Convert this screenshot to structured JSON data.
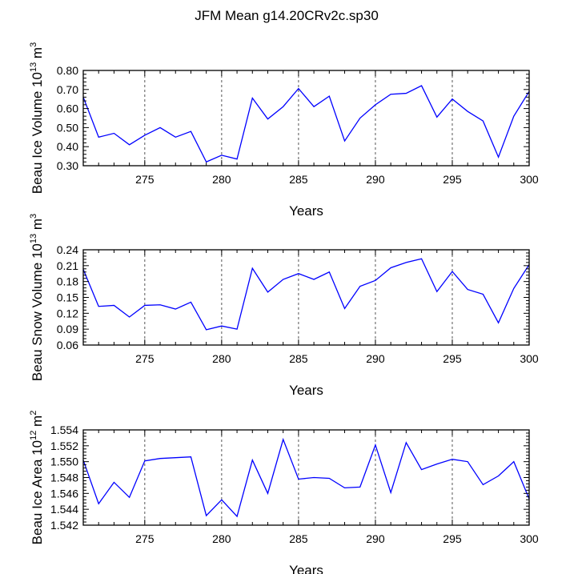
{
  "title": "JFM Mean g14.20CRv2c.sp30",
  "chart_data": [
    {
      "type": "line",
      "ylabel": "Beau Ice Volume 10",
      "ylabel_sup1": "13",
      "ylabel_mid": " m",
      "ylabel_sup2": "3",
      "xlabel": "Years",
      "xlim": [
        271,
        300
      ],
      "ylim": [
        0.3,
        0.8
      ],
      "xticks": [
        "275",
        "280",
        "285",
        "290",
        "295",
        "300"
      ],
      "yticks": [
        "0.30",
        "0.40",
        "0.50",
        "0.60",
        "0.70",
        "0.80"
      ],
      "grid_x_dashed": true,
      "x": [
        271,
        272,
        273,
        274,
        275,
        276,
        277,
        278,
        279,
        280,
        281,
        282,
        283,
        284,
        285,
        286,
        287,
        288,
        289,
        290,
        291,
        292,
        293,
        294,
        295,
        296,
        297,
        298,
        299,
        300
      ],
      "series": [
        {
          "values": [
            0.66,
            0.45,
            0.47,
            0.41,
            0.46,
            0.5,
            0.45,
            0.48,
            0.32,
            0.355,
            0.335,
            0.655,
            0.545,
            0.61,
            0.705,
            0.61,
            0.665,
            0.43,
            0.55,
            0.62,
            0.675,
            0.68,
            0.72,
            0.555,
            0.65,
            0.585,
            0.535,
            0.345,
            0.56,
            0.69
          ]
        }
      ],
      "color": "#0000ff"
    },
    {
      "type": "line",
      "ylabel": "Beau Snow Volume 10",
      "ylabel_sup1": "13",
      "ylabel_mid": " m",
      "ylabel_sup2": "3",
      "xlabel": "Years",
      "xlim": [
        271,
        300
      ],
      "ylim": [
        0.06,
        0.24
      ],
      "xticks": [
        "275",
        "280",
        "285",
        "290",
        "295",
        "300"
      ],
      "yticks": [
        "0.06",
        "0.09",
        "0.12",
        "0.15",
        "0.18",
        "0.21",
        "0.24"
      ],
      "grid_x_dashed": true,
      "x": [
        271,
        272,
        273,
        274,
        275,
        276,
        277,
        278,
        279,
        280,
        281,
        282,
        283,
        284,
        285,
        286,
        287,
        288,
        289,
        290,
        291,
        292,
        293,
        294,
        295,
        296,
        297,
        298,
        299,
        300
      ],
      "series": [
        {
          "values": [
            0.203,
            0.133,
            0.135,
            0.113,
            0.135,
            0.136,
            0.128,
            0.141,
            0.089,
            0.096,
            0.09,
            0.205,
            0.16,
            0.184,
            0.195,
            0.184,
            0.198,
            0.129,
            0.171,
            0.182,
            0.206,
            0.216,
            0.223,
            0.161,
            0.199,
            0.165,
            0.156,
            0.102,
            0.167,
            0.212
          ]
        }
      ],
      "color": "#0000ff"
    },
    {
      "type": "line",
      "ylabel": "Beau Ice Area 10",
      "ylabel_sup1": "12",
      "ylabel_mid": " m",
      "ylabel_sup2": "2",
      "xlabel": "Years",
      "xlim": [
        271,
        300
      ],
      "ylim": [
        1.542,
        1.554
      ],
      "xticks": [
        "275",
        "280",
        "285",
        "290",
        "295",
        "300"
      ],
      "yticks": [
        "1.542",
        "1.544",
        "1.546",
        "1.548",
        "1.550",
        "1.552",
        "1.554"
      ],
      "grid_x_dashed": true,
      "x": [
        271,
        272,
        273,
        274,
        275,
        276,
        277,
        278,
        279,
        280,
        281,
        282,
        283,
        284,
        285,
        286,
        287,
        288,
        289,
        290,
        291,
        292,
        293,
        294,
        295,
        296,
        297,
        298,
        299,
        300
      ],
      "series": [
        {
          "values": [
            1.5502,
            1.5447,
            1.5474,
            1.5455,
            1.5501,
            1.5504,
            1.5505,
            1.5506,
            1.5432,
            1.5452,
            1.5431,
            1.5502,
            1.546,
            1.5528,
            1.5478,
            1.548,
            1.5479,
            1.5467,
            1.5468,
            1.5521,
            1.5461,
            1.5524,
            1.549,
            1.5497,
            1.5503,
            1.55,
            1.5471,
            1.5482,
            1.55,
            1.5453
          ]
        }
      ],
      "color": "#0000ff"
    }
  ]
}
